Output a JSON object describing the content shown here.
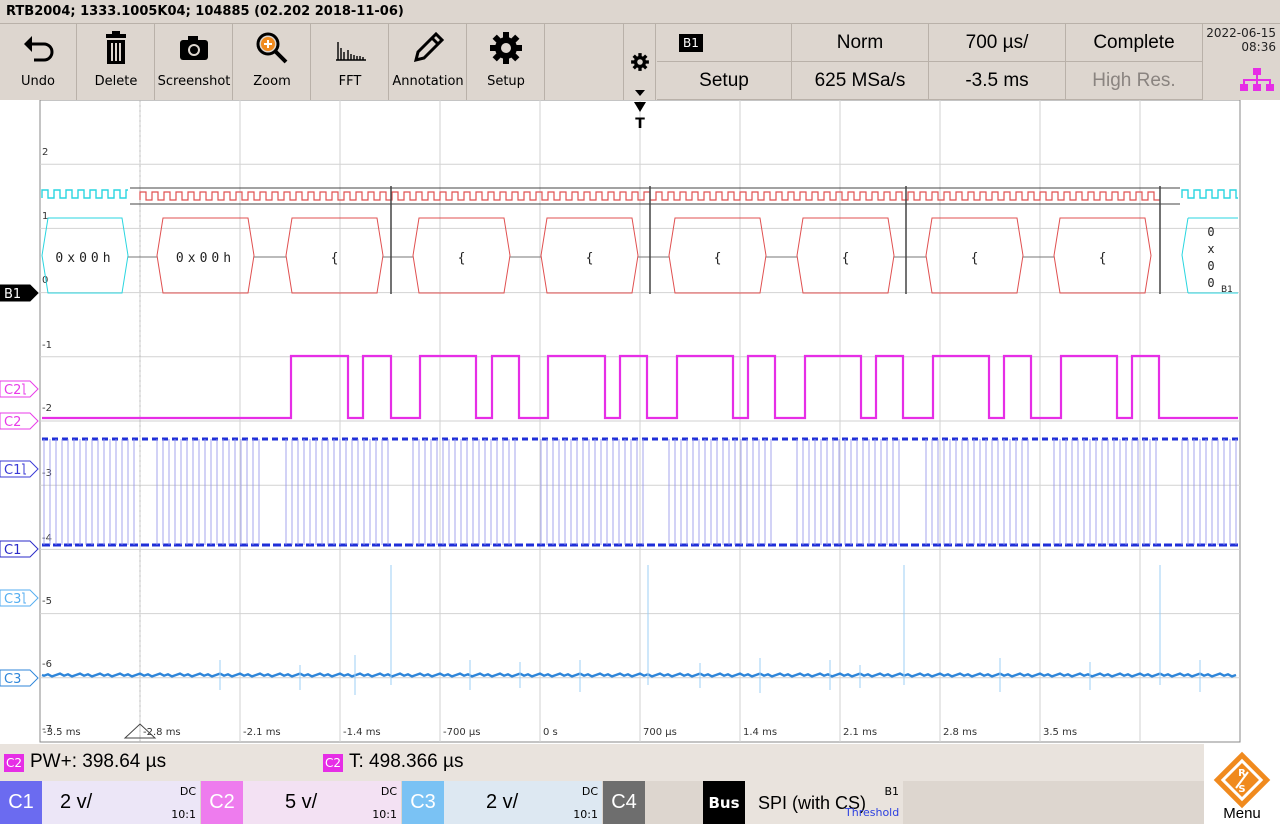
{
  "title": "RTB2004; 1333.1005K04; 104885 (02.202 2018-11-06)",
  "toolbar": [
    {
      "label": "Undo",
      "icon": "undo-icon"
    },
    {
      "label": "Delete",
      "icon": "trash-icon"
    },
    {
      "label": "Screenshot",
      "icon": "camera-icon"
    },
    {
      "label": "Zoom",
      "icon": "zoom-icon"
    },
    {
      "label": "FFT",
      "icon": "fft-icon"
    },
    {
      "label": "Annotation",
      "icon": "pencil-icon"
    },
    {
      "label": "Setup",
      "icon": "gear-icon"
    }
  ],
  "acq": {
    "bus_badge": "B1",
    "setup": "Setup",
    "trigger_mode": "Norm",
    "sample_rate": "625 MSa/s",
    "timebase": "700 µs/",
    "position": "-3.5 ms",
    "acq_mode": "Complete",
    "resolution": "High Res."
  },
  "date": "2022-06-15",
  "time": "08:36",
  "screen": {
    "trigger_marker": "T",
    "y_labels": [
      "2",
      "1",
      "0",
      "-1",
      "-2",
      "-3",
      "-4",
      "-5",
      "-6",
      "-7"
    ],
    "x_labels": [
      "-3.5 ms",
      "-2.8 ms",
      "-2.1 ms",
      "-1.4 ms",
      "-700 µs",
      "0 s",
      "700 µs",
      "1.4 ms",
      "2.1 ms",
      "2.8 ms",
      "3.5 ms"
    ],
    "bus_frames": [
      "0x00h",
      "0x00h",
      "{",
      "{",
      "{",
      "{",
      "{",
      "{",
      "{"
    ],
    "bus_right_frame": [
      "0",
      "x",
      "0",
      "0"
    ],
    "bus_right_badge": "B1",
    "markers": [
      {
        "label": "B1",
        "color": "#000000"
      },
      {
        "label": "C2",
        "color": "#e83be8",
        "threshold": true
      },
      {
        "label": "C2",
        "color": "#e83be8"
      },
      {
        "label": "C1",
        "color": "#3a3ad6",
        "threshold": true
      },
      {
        "label": "C1",
        "color": "#2a2ac8"
      },
      {
        "label": "C3",
        "color": "#55aef0",
        "threshold": true
      },
      {
        "label": "C3",
        "color": "#2f86d9"
      }
    ]
  },
  "measurements": [
    {
      "badge": "C2",
      "text": "PW+: 398.64 µs"
    },
    {
      "badge": "C2",
      "text": "T: 498.366 µs"
    }
  ],
  "channels": [
    {
      "label": "C1",
      "scale": "2 v/",
      "coupling": "DC",
      "probe": "10:1",
      "color": "#6b6bf0"
    },
    {
      "label": "C2",
      "scale": "5 v/",
      "coupling": "DC",
      "probe": "10:1",
      "color": "#ee7cee"
    },
    {
      "label": "C3",
      "scale": "2 v/",
      "coupling": "DC",
      "probe": "10:1",
      "color": "#7ac2f4"
    },
    {
      "label": "C4",
      "color": "#6e6e6e"
    }
  ],
  "bus": {
    "label": "Bus",
    "protocol": "SPI (with CS)",
    "badge": "B1",
    "sub": "Threshold"
  },
  "menu_label": "Menu",
  "colors": {
    "c1": "#1f2fd8",
    "c2": "#e62ee6",
    "c3": "#2f86d9",
    "bus": "#e05050"
  }
}
